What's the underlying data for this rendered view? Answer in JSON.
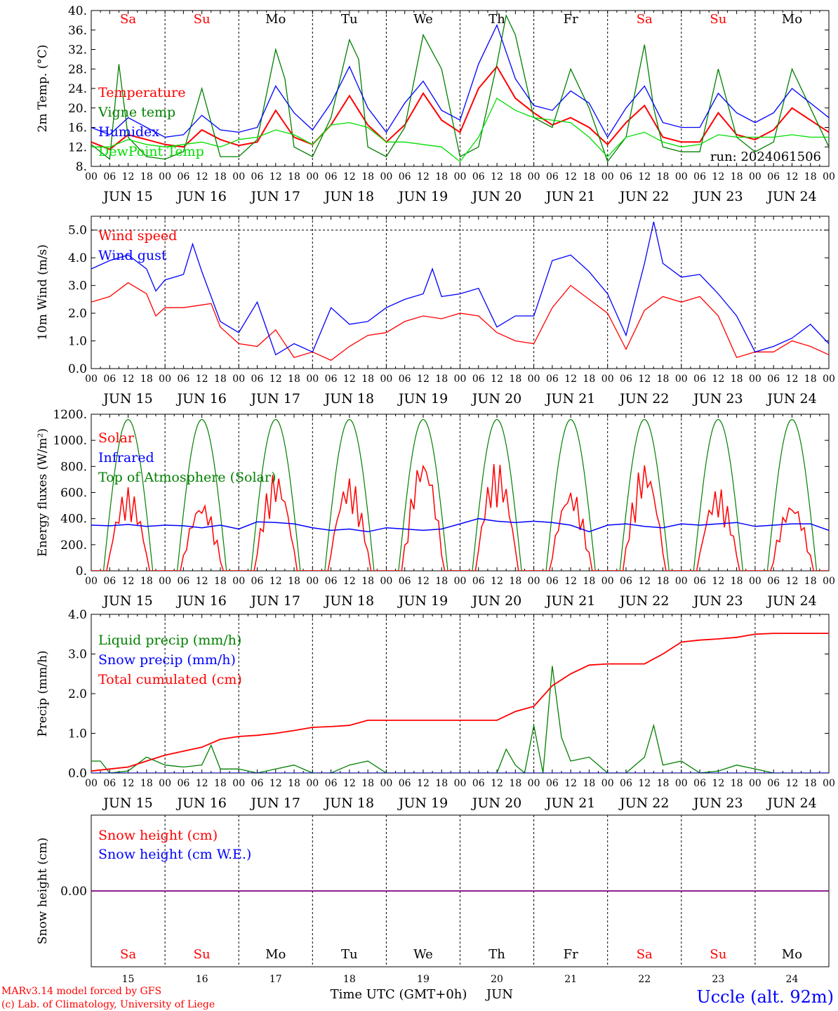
{
  "page": {
    "x_axis_title": "Time UTC (GMT+0h)",
    "x_axis_month": "JUN",
    "credit_line1": "MARv3.14 model forced by GFS",
    "credit_line2": "(c) Lab. of Climatology, University of Liege",
    "station": "Uccle (alt. 92m)"
  },
  "days": {
    "weekday_labels": [
      "Sa",
      "Su",
      "Mo",
      "Tu",
      "We",
      "Th",
      "Fr",
      "Sa",
      "Su",
      "Mo"
    ],
    "weekend_flags": [
      true,
      true,
      false,
      false,
      false,
      false,
      false,
      true,
      true,
      false
    ],
    "date_labels": [
      "JUN 15",
      "JUN 16",
      "JUN 17",
      "JUN 18",
      "JUN 19",
      "JUN 20",
      "JUN 21",
      "JUN 22",
      "JUN 23",
      "JUN 24"
    ],
    "day_numbers": [
      "15",
      "16",
      "17",
      "18",
      "19",
      "20",
      "21",
      "22",
      "23",
      "24"
    ],
    "hour_labels": [
      "00",
      "06",
      "12",
      "18"
    ],
    "final_hour_label": "00"
  },
  "colors": {
    "red": "#ff0000",
    "green": "#008000",
    "blue": "#0000ff",
    "lightgreen": "#00dd00",
    "purple": "#800080"
  },
  "chart_data": [
    {
      "type": "line",
      "ylabel": "2m Temp. (°C)",
      "ylim": [
        8,
        40
      ],
      "yticks": [
        "8.",
        "12.",
        "16.",
        "20.",
        "24.",
        "28.",
        "32.",
        "36.",
        "40."
      ],
      "yticks_values": [
        8,
        12,
        16,
        20,
        24,
        28,
        32,
        36,
        40
      ],
      "annotation": "run: 2024061506",
      "x_unit": "hours since JUN 15 00 UTC",
      "series": [
        {
          "name": "Temperature",
          "color": "#ff0000",
          "x": [
            0,
            6,
            12,
            18,
            24,
            30,
            36,
            42,
            48,
            54,
            60,
            66,
            72,
            78,
            84,
            90,
            96,
            102,
            108,
            114,
            120,
            126,
            132,
            138,
            144,
            150,
            156,
            162,
            168,
            174,
            180,
            186,
            192,
            198,
            204,
            210,
            216,
            222,
            228,
            234,
            240
          ],
          "values": [
            13,
            11.5,
            14.5,
            13.5,
            12.5,
            12,
            15.5,
            13.5,
            12.3,
            13,
            19.5,
            14,
            12.5,
            16.5,
            22.5,
            16.5,
            13,
            16.5,
            23,
            17.5,
            15,
            24,
            28.5,
            22,
            19,
            16.5,
            18,
            16,
            12.5,
            17,
            20.5,
            14,
            13,
            13,
            19,
            14.5,
            13.5,
            15.5,
            20,
            17.5,
            15
          ]
        },
        {
          "name": "Vigne temp",
          "color": "#008000",
          "x": [
            0,
            6,
            9,
            12,
            18,
            24,
            30,
            36,
            42,
            48,
            54,
            60,
            63,
            66,
            72,
            78,
            84,
            87,
            90,
            96,
            102,
            108,
            114,
            120,
            126,
            132,
            135,
            138,
            144,
            150,
            156,
            162,
            168,
            174,
            180,
            183,
            186,
            192,
            198,
            204,
            210,
            216,
            222,
            228,
            234,
            240
          ],
          "values": [
            12.5,
            9.5,
            29,
            14,
            10,
            9.5,
            11,
            24,
            10,
            10,
            13.5,
            32,
            26,
            12,
            10,
            18,
            34,
            30,
            12,
            10,
            16,
            35,
            28,
            10,
            12,
            29,
            39,
            35,
            18,
            16,
            28,
            20,
            9,
            14,
            33,
            20,
            12,
            11,
            11,
            28,
            14,
            11,
            13,
            28,
            20,
            12
          ]
        },
        {
          "name": "Humidex",
          "color": "#0000ff",
          "x": [
            0,
            6,
            12,
            18,
            24,
            30,
            36,
            42,
            48,
            54,
            60,
            66,
            72,
            78,
            84,
            90,
            96,
            102,
            108,
            114,
            120,
            126,
            132,
            138,
            144,
            150,
            156,
            162,
            168,
            174,
            180,
            186,
            192,
            198,
            204,
            210,
            216,
            222,
            228,
            234,
            240
          ],
          "values": [
            16,
            14.5,
            18,
            16,
            14,
            14.5,
            18.5,
            15.5,
            15,
            16,
            24.5,
            19,
            15.5,
            21,
            28.5,
            20,
            15,
            21,
            25.5,
            19.5,
            17.5,
            29,
            37,
            26,
            20.5,
            19.5,
            23.5,
            21,
            14,
            20,
            24.5,
            17,
            16,
            16,
            23,
            19,
            17,
            19,
            24,
            21,
            18
          ]
        },
        {
          "name": "DewPoint Temp",
          "color": "#00dd00",
          "x": [
            0,
            6,
            12,
            18,
            24,
            30,
            36,
            42,
            48,
            54,
            60,
            66,
            72,
            78,
            84,
            90,
            96,
            102,
            108,
            114,
            120,
            126,
            132,
            138,
            144,
            150,
            156,
            162,
            168,
            174,
            180,
            186,
            192,
            198,
            204,
            210,
            216,
            222,
            228,
            234,
            240
          ],
          "values": [
            12,
            12,
            13.5,
            12.5,
            12,
            12.5,
            13,
            12,
            13.5,
            14,
            15.5,
            14.5,
            12.5,
            16.5,
            17,
            16,
            13,
            13,
            12.5,
            12,
            9,
            14,
            22,
            19.5,
            18,
            17.5,
            17,
            14,
            10,
            14,
            15,
            13,
            12,
            12.5,
            14.5,
            14,
            14,
            14,
            14.5,
            14,
            14
          ]
        }
      ]
    },
    {
      "type": "line",
      "ylabel": "10m Wind (m/s)",
      "ylim": [
        0,
        5.5
      ],
      "yticks": [
        "0.0",
        "1.0",
        "2.0",
        "3.0",
        "4.0",
        "5.0"
      ],
      "yticks_values": [
        0,
        1,
        2,
        3,
        4,
        5
      ],
      "reference_line": 5.0,
      "x_unit": "hours since JUN 15 00 UTC",
      "series": [
        {
          "name": "Wind speed",
          "color": "#ff0000",
          "x": [
            0,
            6,
            12,
            18,
            21,
            24,
            30,
            36,
            39,
            42,
            48,
            54,
            60,
            66,
            72,
            78,
            84,
            90,
            96,
            102,
            108,
            114,
            120,
            126,
            132,
            138,
            144,
            150,
            156,
            162,
            168,
            174,
            180,
            186,
            192,
            198,
            204,
            210,
            216,
            222,
            228,
            234,
            240
          ],
          "values": [
            2.4,
            2.6,
            3.1,
            2.7,
            1.9,
            2.2,
            2.2,
            2.3,
            2.35,
            1.5,
            0.9,
            0.8,
            1.4,
            0.4,
            0.6,
            0.3,
            0.8,
            1.2,
            1.3,
            1.7,
            1.9,
            1.8,
            2.0,
            1.9,
            1.3,
            1.0,
            0.9,
            2.2,
            3.0,
            2.5,
            2.0,
            0.7,
            2.1,
            2.6,
            2.4,
            2.6,
            1.9,
            0.4,
            0.6,
            0.6,
            1.0,
            0.8,
            0.5
          ]
        },
        {
          "name": "Wind gust",
          "color": "#0000ff",
          "x": [
            0,
            6,
            12,
            18,
            21,
            24,
            30,
            33,
            36,
            39,
            42,
            48,
            54,
            60,
            66,
            72,
            78,
            84,
            90,
            96,
            102,
            108,
            111,
            114,
            120,
            126,
            132,
            138,
            144,
            150,
            156,
            162,
            168,
            174,
            180,
            183,
            186,
            192,
            198,
            204,
            210,
            216,
            222,
            228,
            234,
            240
          ],
          "values": [
            3.6,
            3.9,
            4.1,
            3.6,
            2.8,
            3.2,
            3.4,
            4.5,
            3.5,
            2.6,
            1.7,
            1.3,
            2.4,
            0.5,
            0.9,
            0.6,
            2.2,
            1.6,
            1.7,
            2.2,
            2.5,
            2.7,
            3.6,
            2.6,
            2.7,
            2.9,
            1.5,
            1.9,
            1.9,
            3.9,
            4.1,
            3.5,
            2.7,
            1.2,
            3.8,
            5.3,
            3.8,
            3.3,
            3.4,
            2.7,
            1.9,
            0.6,
            0.8,
            1.1,
            1.6,
            0.9
          ]
        }
      ]
    },
    {
      "type": "line",
      "ylabel": "Energy fluxes (W/m²)",
      "ylim": [
        0,
        1200
      ],
      "yticks": [
        "0.",
        "200.",
        "400.",
        "600.",
        "800.",
        "1000.",
        "1200."
      ],
      "yticks_values": [
        0,
        200,
        400,
        600,
        800,
        1000,
        1200
      ],
      "x_unit": "hours since JUN 15 00 UTC",
      "toa_peak": 1160,
      "solar_peaks": [
        640,
        540,
        760,
        720,
        890,
        840,
        640,
        840,
        640,
        540
      ],
      "infrared_values": [
        350,
        345,
        355,
        340,
        350,
        345,
        330,
        350,
        320,
        375,
        370,
        360,
        330,
        310,
        320,
        300,
        330,
        320,
        310,
        320,
        360,
        400,
        380,
        370,
        380,
        370,
        350,
        300,
        350,
        360,
        340,
        330,
        360,
        350,
        360,
        370,
        340,
        350,
        360,
        360,
        310
      ],
      "series": [
        {
          "name": "Solar",
          "color": "#ff0000"
        },
        {
          "name": "Infrared",
          "color": "#0000ff"
        },
        {
          "name": "Top of Atmosphere (Solar)",
          "color": "#008000"
        }
      ]
    },
    {
      "type": "line",
      "ylabel": "Precip (mm/h)",
      "ylim": [
        0,
        4
      ],
      "yticks": [
        "0.0",
        "1.0",
        "2.0",
        "3.0",
        "4.0"
      ],
      "yticks_values": [
        0,
        1,
        2,
        3,
        4
      ],
      "x_unit": "hours since JUN 15 00 UTC",
      "series": [
        {
          "name": "Liquid precip (mm/h)",
          "color": "#008000",
          "x": [
            0,
            3,
            6,
            12,
            18,
            24,
            30,
            36,
            39,
            42,
            48,
            54,
            60,
            66,
            72,
            78,
            84,
            90,
            96,
            120,
            132,
            135,
            138,
            141,
            144,
            147,
            150,
            153,
            156,
            162,
            168,
            174,
            180,
            183,
            186,
            192,
            198,
            204,
            210,
            216,
            222,
            228,
            234,
            240
          ],
          "values": [
            0.3,
            0.3,
            0,
            0.05,
            0.4,
            0.2,
            0.15,
            0.2,
            0.7,
            0.1,
            0.1,
            0,
            0.1,
            0.2,
            0,
            0,
            0.2,
            0.3,
            0,
            0,
            0,
            0.6,
            0.2,
            0,
            1.2,
            0,
            2.7,
            0.9,
            0.3,
            0.4,
            0,
            0,
            0.4,
            1.2,
            0.2,
            0.3,
            0,
            0.05,
            0.2,
            0.1,
            0,
            0,
            0,
            0
          ]
        },
        {
          "name": "Snow precip (mm/h)",
          "color": "#0000ff",
          "x": [
            0,
            240
          ],
          "values": [
            0,
            0
          ]
        },
        {
          "name": "Total cumulated (cm)",
          "color": "#ff0000",
          "x": [
            0,
            6,
            12,
            18,
            24,
            30,
            36,
            42,
            48,
            54,
            60,
            66,
            72,
            78,
            84,
            90,
            96,
            102,
            108,
            114,
            120,
            126,
            132,
            138,
            144,
            150,
            156,
            162,
            168,
            174,
            180,
            186,
            192,
            198,
            204,
            210,
            216,
            222,
            228,
            234,
            240
          ],
          "values": [
            0.05,
            0.1,
            0.15,
            0.3,
            0.45,
            0.55,
            0.65,
            0.85,
            0.92,
            0.95,
            1.0,
            1.07,
            1.15,
            1.17,
            1.2,
            1.33,
            1.33,
            1.33,
            1.33,
            1.33,
            1.33,
            1.33,
            1.33,
            1.55,
            1.68,
            2.2,
            2.5,
            2.72,
            2.75,
            2.75,
            2.75,
            3.0,
            3.3,
            3.35,
            3.38,
            3.42,
            3.5,
            3.52,
            3.52,
            3.52,
            3.52
          ]
        }
      ]
    },
    {
      "type": "line",
      "ylabel": "Snow height (cm)",
      "ylim": [
        -1,
        1
      ],
      "yticks": [
        "0.00"
      ],
      "yticks_values": [
        0
      ],
      "x_unit": "hours since JUN 15 00 UTC",
      "series": [
        {
          "name": "Snow height (cm)",
          "color": "#ff0000",
          "x": [
            0,
            240
          ],
          "values": [
            0,
            0
          ]
        },
        {
          "name": "Snow height (cm W.E.)",
          "color": "#0000ff",
          "x": [
            0,
            240
          ],
          "values": [
            0,
            0
          ]
        }
      ]
    }
  ]
}
